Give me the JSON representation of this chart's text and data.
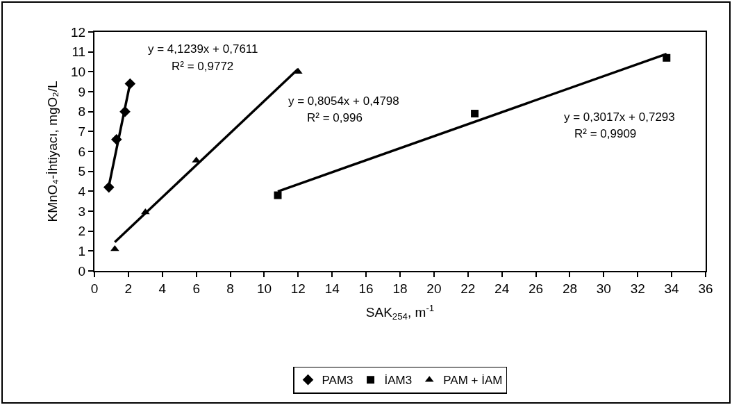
{
  "chart_data": {
    "type": "scatter",
    "xlabel": "SAK$_{254}$, m$^{-1}$",
    "ylabel": "KMnO₄-İhtiyacı, mgO₂/L",
    "xlim": [
      0,
      36
    ],
    "xticks": [
      0,
      2,
      4,
      6,
      8,
      10,
      12,
      14,
      16,
      18,
      20,
      22,
      24,
      26,
      28,
      30,
      32,
      34,
      36
    ],
    "ylim": [
      0,
      12
    ],
    "yticks": [
      0,
      1,
      2,
      3,
      4,
      5,
      6,
      7,
      8,
      9,
      10,
      11,
      12
    ],
    "grid": false,
    "legend": "bottom",
    "series": [
      {
        "name": "PAM3",
        "marker": "diamond",
        "color": "#000000",
        "x": [
          0.85,
          1.3,
          1.8,
          2.1
        ],
        "values": [
          4.2,
          6.6,
          8.0,
          9.4
        ]
      },
      {
        "name": "İAM3",
        "marker": "square",
        "color": "#000000",
        "x": [
          10.8,
          22.4,
          33.7
        ],
        "values": [
          3.8,
          7.9,
          10.7
        ]
      },
      {
        "name": "PAM + İAM",
        "marker": "triangle",
        "color": "#000000",
        "x": [
          1.2,
          3,
          6,
          12
        ],
        "values": [
          1.1,
          2.95,
          5.55,
          10.0
        ]
      },
      {
        "type": "line",
        "marker": "none",
        "line_style": "solid",
        "color": "#000000",
        "x": [
          0.85,
          2.1
        ],
        "values": [
          4.27,
          9.42
        ]
      },
      {
        "type": "line",
        "marker": "none",
        "line_style": "solid",
        "color": "#000000",
        "x": [
          10.8,
          33.7
        ],
        "values": [
          3.99,
          10.9
        ]
      },
      {
        "type": "line",
        "marker": "none",
        "line_style": "solid",
        "color": "#000000",
        "x": [
          1.2,
          12
        ],
        "values": [
          1.45,
          10.14
        ]
      }
    ],
    "annotations": [
      "y = 4,1239x + 0,7611",
      "R² = 0,9772",
      "y = 0,8054x + 0,4798",
      "R² = 0,996",
      "y = 0,3017x + 0,7293",
      "R² = 0,9909"
    ]
  }
}
